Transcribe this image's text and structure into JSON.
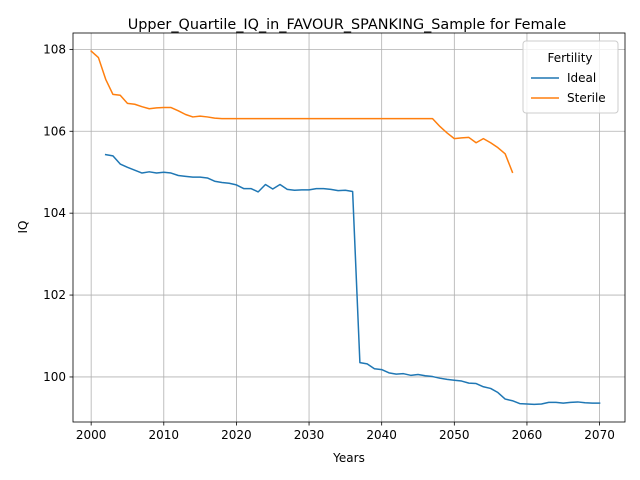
{
  "chart_data": {
    "type": "line",
    "title": "Upper_Quartile_IQ_in_FAVOUR_SPANKING_Sample for Female",
    "xlabel": "Years",
    "ylabel": "IQ",
    "xlim": [
      1997.5,
      2073.5
    ],
    "ylim": [
      98.9,
      108.4
    ],
    "xticks": [
      2000,
      2010,
      2020,
      2030,
      2040,
      2050,
      2060,
      2070
    ],
    "yticks": [
      100,
      102,
      104,
      106,
      108
    ],
    "grid": true,
    "legend": {
      "title": "Fertility",
      "placement": "top-right"
    },
    "series": [
      {
        "name": "Ideal",
        "color": "#1f77b4",
        "x": [
          2002,
          2003,
          2004,
          2005,
          2006,
          2007,
          2008,
          2009,
          2010,
          2011,
          2012,
          2013,
          2014,
          2015,
          2016,
          2017,
          2018,
          2019,
          2020,
          2021,
          2022,
          2023,
          2024,
          2025,
          2026,
          2027,
          2028,
          2029,
          2030,
          2031,
          2032,
          2033,
          2034,
          2035,
          2036,
          2037,
          2038,
          2039,
          2040,
          2041,
          2042,
          2043,
          2044,
          2045,
          2046,
          2047,
          2048,
          2049,
          2050,
          2051,
          2052,
          2053,
          2054,
          2055,
          2056,
          2057,
          2058,
          2059,
          2060,
          2061,
          2062,
          2063,
          2064,
          2065,
          2066,
          2067,
          2068,
          2069,
          2070
        ],
        "y": [
          105.43,
          105.4,
          105.2,
          105.12,
          105.05,
          104.98,
          105.01,
          104.98,
          105.0,
          104.98,
          104.92,
          104.9,
          104.88,
          104.88,
          104.86,
          104.78,
          104.75,
          104.73,
          104.69,
          104.6,
          104.6,
          104.52,
          104.7,
          104.59,
          104.7,
          104.58,
          104.56,
          104.57,
          104.57,
          104.6,
          104.6,
          104.58,
          104.55,
          104.56,
          104.53,
          100.35,
          100.32,
          100.2,
          100.18,
          100.1,
          100.07,
          100.08,
          100.04,
          100.06,
          100.03,
          100.01,
          99.97,
          99.94,
          99.92,
          99.9,
          99.85,
          99.84,
          99.76,
          99.72,
          99.62,
          99.46,
          99.42,
          99.35,
          99.34,
          99.33,
          99.34,
          99.38,
          99.38,
          99.36,
          99.38,
          99.39,
          99.37,
          99.36,
          99.36
        ]
      },
      {
        "name": "Sterile",
        "color": "#ff7f0e",
        "x": [
          2000,
          2001,
          2002,
          2003,
          2004,
          2005,
          2006,
          2007,
          2008,
          2009,
          2010,
          2011,
          2012,
          2013,
          2014,
          2015,
          2016,
          2017,
          2018,
          2019,
          2020,
          2021,
          2022,
          2023,
          2024,
          2025,
          2026,
          2027,
          2028,
          2029,
          2030,
          2031,
          2032,
          2033,
          2034,
          2035,
          2036,
          2037,
          2038,
          2039,
          2040,
          2041,
          2042,
          2043,
          2044,
          2045,
          2046,
          2047,
          2048,
          2049,
          2050,
          2051,
          2052,
          2053,
          2054,
          2055,
          2056,
          2057,
          2058
        ],
        "y": [
          107.96,
          107.8,
          107.27,
          106.9,
          106.88,
          106.68,
          106.66,
          106.6,
          106.55,
          106.57,
          106.58,
          106.58,
          106.5,
          106.41,
          106.35,
          106.37,
          106.35,
          106.32,
          106.31,
          106.31,
          106.31,
          106.31,
          106.31,
          106.31,
          106.31,
          106.31,
          106.31,
          106.31,
          106.31,
          106.31,
          106.31,
          106.31,
          106.31,
          106.31,
          106.31,
          106.31,
          106.31,
          106.31,
          106.31,
          106.31,
          106.31,
          106.31,
          106.31,
          106.31,
          106.31,
          106.31,
          106.31,
          106.31,
          106.12,
          105.96,
          105.82,
          105.84,
          105.85,
          105.72,
          105.82,
          105.72,
          105.6,
          105.45,
          105.0
        ]
      }
    ]
  }
}
